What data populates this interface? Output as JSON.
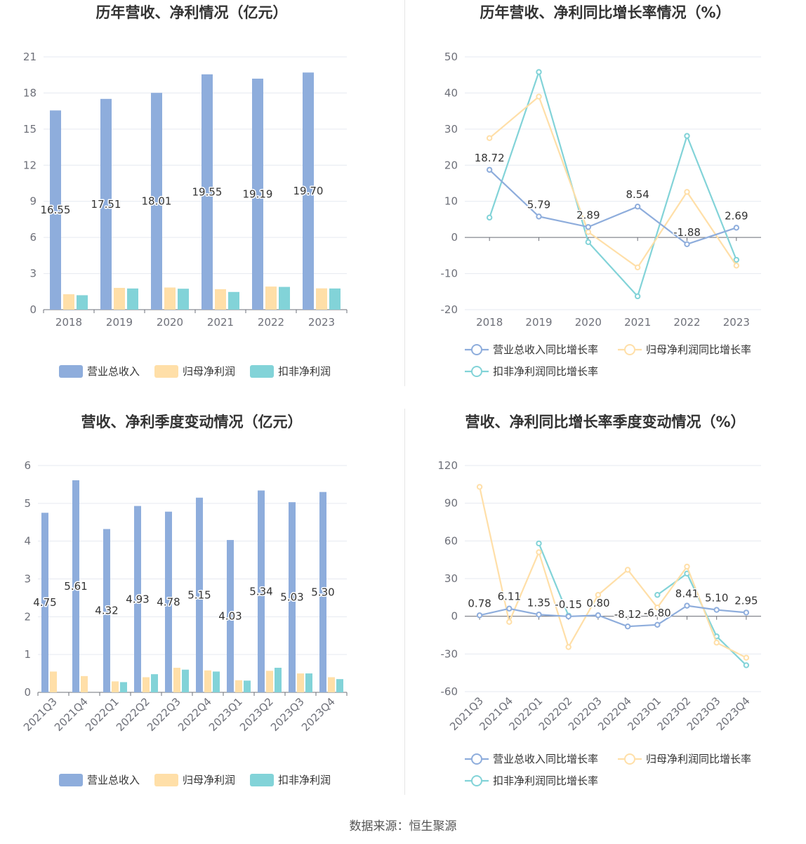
{
  "source_text": "数据来源：恒生聚源",
  "chart_data": [
    {
      "type": "bar",
      "title": "历年营收、净利情况（亿元）",
      "categories": [
        "2018",
        "2019",
        "2020",
        "2021",
        "2022",
        "2023"
      ],
      "ylim": [
        0,
        21
      ],
      "yticks": [
        0,
        3,
        6,
        9,
        12,
        15,
        18,
        21
      ],
      "series": [
        {
          "name": "营业总收入",
          "color": "#8eaddc",
          "values": [
            16.55,
            17.51,
            18.01,
            19.55,
            19.19,
            19.7
          ],
          "labels": [
            "16.55",
            "17.51",
            "18.01",
            "19.55",
            "19.19",
            "19.70"
          ]
        },
        {
          "name": "归母净利润",
          "color": "#ffdfa8",
          "values": [
            1.28,
            1.81,
            1.84,
            1.7,
            1.92,
            1.77
          ]
        },
        {
          "name": "扣非净利润",
          "color": "#82d3d8",
          "values": [
            1.2,
            1.76,
            1.74,
            1.47,
            1.89,
            1.76
          ]
        }
      ],
      "legend_position": "bottom"
    },
    {
      "type": "line",
      "title": "历年营收、净利同比增长率情况（%）",
      "categories": [
        "2018",
        "2019",
        "2020",
        "2021",
        "2022",
        "2023"
      ],
      "ylim": [
        -20,
        50
      ],
      "yticks": [
        -20,
        -10,
        0,
        10,
        20,
        30,
        40,
        50
      ],
      "series": [
        {
          "name": "营业总收入同比增长率",
          "color": "#8eaddc",
          "values": [
            18.72,
            5.79,
            2.89,
            8.54,
            -1.88,
            2.69
          ],
          "labels": [
            "18.72",
            "5.79",
            "2.89",
            "8.54",
            "-1.88",
            "2.69"
          ]
        },
        {
          "name": "归母净利润同比增长率",
          "color": "#ffdfa8",
          "values": [
            27.5,
            39.0,
            1.5,
            -8.3,
            12.6,
            -7.8
          ]
        },
        {
          "name": "扣非净利润同比增长率",
          "color": "#82d3d8",
          "values": [
            5.5,
            45.8,
            -1.3,
            -16.3,
            28.1,
            -6.2
          ]
        }
      ],
      "legend_position": "bottom"
    },
    {
      "type": "bar",
      "title": "营收、净利季度变动情况（亿元）",
      "categories": [
        "2021Q3",
        "2021Q4",
        "2022Q1",
        "2022Q2",
        "2022Q3",
        "2022Q4",
        "2023Q1",
        "2023Q2",
        "2023Q3",
        "2023Q4"
      ],
      "ylim": [
        0,
        6
      ],
      "yticks": [
        0,
        1,
        2,
        3,
        4,
        5,
        6
      ],
      "series": [
        {
          "name": "营业总收入",
          "color": "#8eaddc",
          "values": [
            4.75,
            5.61,
            4.32,
            4.93,
            4.78,
            5.15,
            4.03,
            5.34,
            5.03,
            5.3
          ],
          "labels": [
            "4.75",
            "5.61",
            "4.32",
            "4.93",
            "4.78",
            "5.15",
            "4.03",
            "5.34",
            "5.03",
            "5.30"
          ]
        },
        {
          "name": "归母净利润",
          "color": "#ffdfa8",
          "values": [
            0.55,
            0.43,
            0.29,
            0.4,
            0.65,
            0.58,
            0.32,
            0.57,
            0.5,
            0.4
          ]
        },
        {
          "name": "扣非净利润",
          "color": "#82d3d8",
          "values": [
            null,
            null,
            0.27,
            0.48,
            0.6,
            0.55,
            0.31,
            0.65,
            0.5,
            0.35
          ]
        }
      ],
      "legend_position": "bottom"
    },
    {
      "type": "line",
      "title": "营收、净利同比增长率季度变动情况（%）",
      "categories": [
        "2021Q3",
        "2021Q4",
        "2022Q1",
        "2022Q2",
        "2022Q3",
        "2022Q4",
        "2023Q1",
        "2023Q2",
        "2023Q3",
        "2023Q4"
      ],
      "ylim": [
        -60,
        120
      ],
      "yticks": [
        -60,
        -30,
        0,
        30,
        60,
        90,
        120
      ],
      "series": [
        {
          "name": "营业总收入同比增长率",
          "color": "#8eaddc",
          "values": [
            0.78,
            6.11,
            1.35,
            -0.15,
            0.8,
            -8.12,
            -6.8,
            8.41,
            5.1,
            2.95
          ],
          "labels": [
            "0.78",
            "6.11",
            "1.35",
            "-0.15",
            "0.80",
            "-8.12",
            "-6.80",
            "8.41",
            "5.10",
            "2.95"
          ]
        },
        {
          "name": "归母净利润同比增长率",
          "color": "#ffdfa8",
          "values": [
            103,
            -4.5,
            51,
            -24.5,
            17,
            37,
            7,
            39.5,
            -21,
            -33
          ]
        },
        {
          "name": "扣非净利润同比增长率",
          "color": "#82d3d8",
          "values": [
            null,
            null,
            58,
            0.5,
            null,
            null,
            17,
            34,
            -16,
            -39
          ]
        }
      ],
      "legend_position": "bottom"
    }
  ]
}
